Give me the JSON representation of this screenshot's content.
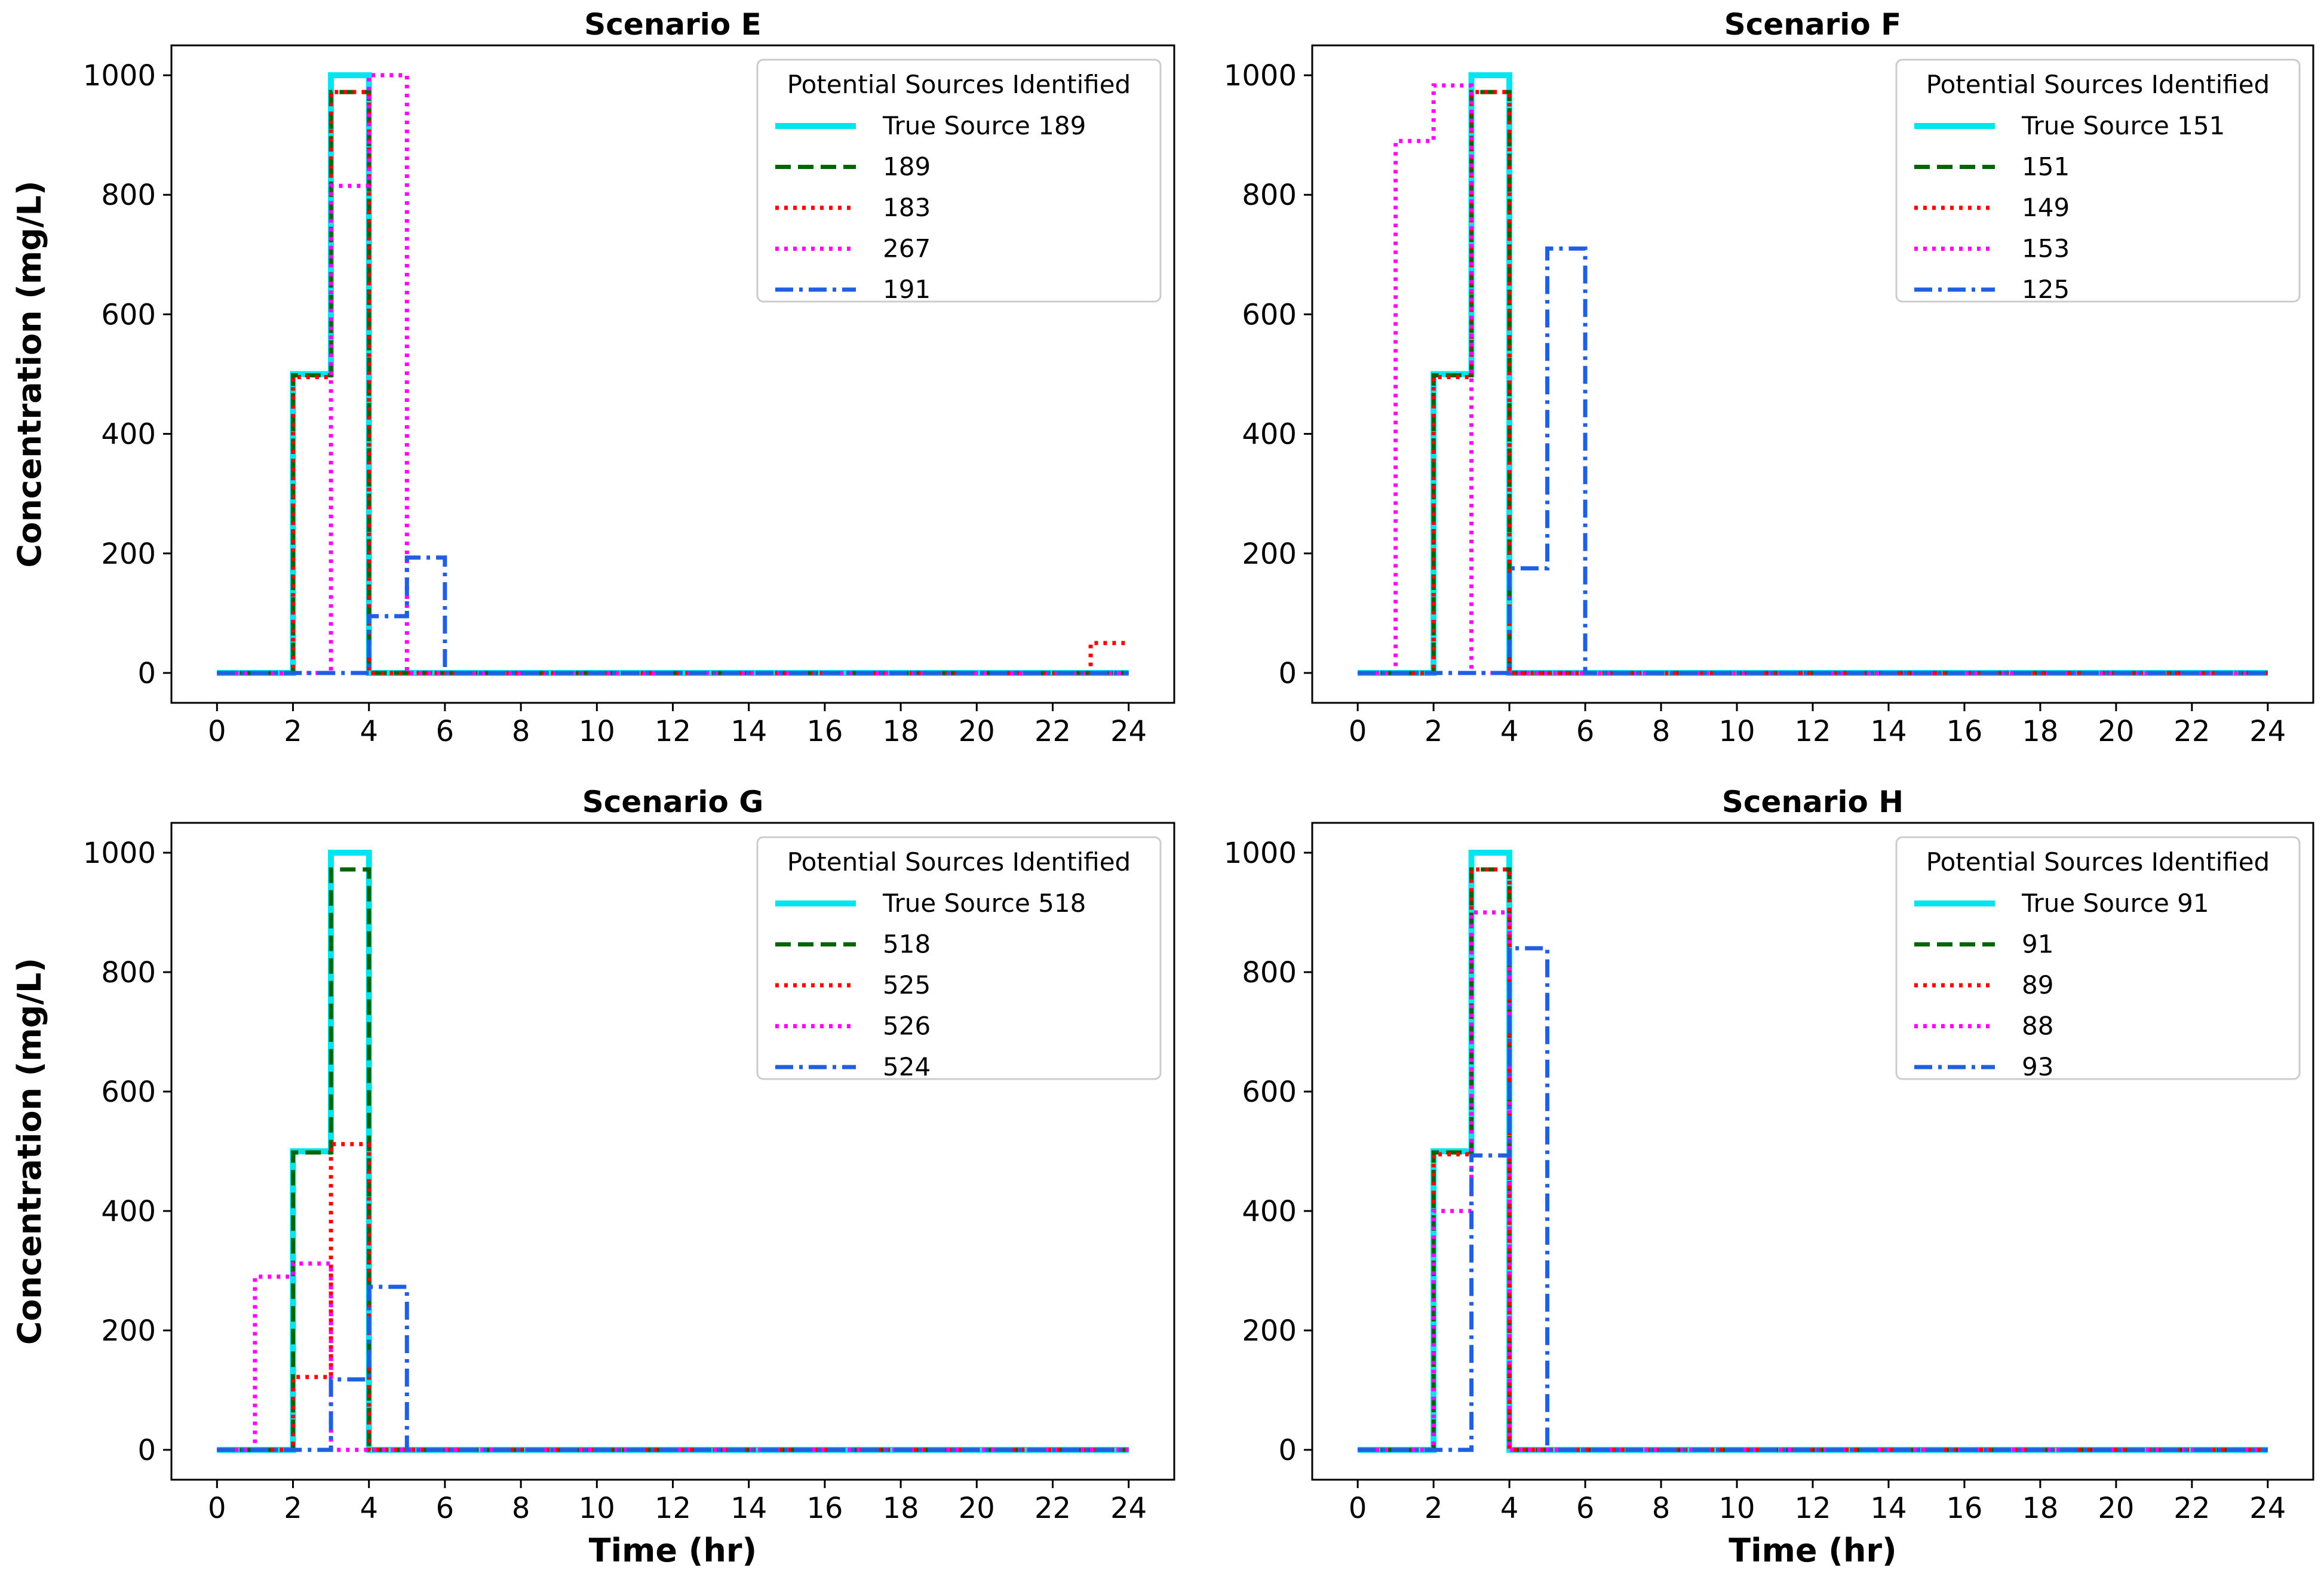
{
  "chart_data": [
    {
      "type": "line",
      "title": "Scenario E",
      "xlabel": "",
      "ylabel": "Concentration (mg/L)",
      "xlim": [
        -1.2,
        25.2
      ],
      "ylim": [
        -50,
        1050
      ],
      "xticks": [
        0,
        2,
        4,
        6,
        8,
        10,
        12,
        14,
        16,
        18,
        20,
        22,
        24
      ],
      "yticks": [
        0,
        200,
        400,
        600,
        800,
        1000
      ],
      "legend": {
        "title": "Potential Sources Identified",
        "placement": "top-right"
      },
      "series": [
        {
          "name": "True Source 189",
          "style": "solid",
          "color": "#00e5ee",
          "x": [
            0,
            2,
            2,
            3,
            3,
            4,
            4,
            24
          ],
          "y": [
            0,
            0,
            500,
            500,
            1000,
            1000,
            0,
            0
          ]
        },
        {
          "name": "189",
          "style": "dashed",
          "color": "#006400",
          "x": [
            0,
            2,
            2,
            3,
            3,
            4,
            4,
            24
          ],
          "y": [
            0,
            0,
            498,
            498,
            972,
            972,
            0,
            0
          ]
        },
        {
          "name": "183",
          "style": "dotted",
          "color": "#ff0000",
          "x": [
            0,
            2,
            2,
            3,
            3,
            4,
            4,
            23,
            23,
            24
          ],
          "y": [
            0,
            0,
            495,
            495,
            972,
            972,
            0,
            0,
            50,
            50
          ]
        },
        {
          "name": "267",
          "style": "dotted",
          "color": "#ff00ff",
          "x": [
            0,
            3,
            3,
            4,
            4,
            5,
            5,
            24
          ],
          "y": [
            0,
            0,
            815,
            815,
            1000,
            1000,
            0,
            0
          ]
        },
        {
          "name": "191",
          "style": "dashdot",
          "color": "#1f5fe0",
          "x": [
            0,
            4,
            4,
            5,
            5,
            6,
            6,
            24
          ],
          "y": [
            0,
            0,
            95,
            95,
            193,
            193,
            0,
            0
          ]
        }
      ]
    },
    {
      "type": "line",
      "title": "Scenario F",
      "xlabel": "",
      "ylabel": "",
      "xlim": [
        -1.2,
        25.2
      ],
      "ylim": [
        -50,
        1050
      ],
      "xticks": [
        0,
        2,
        4,
        6,
        8,
        10,
        12,
        14,
        16,
        18,
        20,
        22,
        24
      ],
      "yticks": [
        0,
        200,
        400,
        600,
        800,
        1000
      ],
      "legend": {
        "title": "Potential Sources Identified",
        "placement": "top-right"
      },
      "series": [
        {
          "name": "True Source 151",
          "style": "solid",
          "color": "#00e5ee",
          "x": [
            0,
            2,
            2,
            3,
            3,
            4,
            4,
            24
          ],
          "y": [
            0,
            0,
            500,
            500,
            1000,
            1000,
            0,
            0
          ]
        },
        {
          "name": "151",
          "style": "dashed",
          "color": "#006400",
          "x": [
            0,
            2,
            2,
            3,
            3,
            4,
            4,
            24
          ],
          "y": [
            0,
            0,
            498,
            498,
            972,
            972,
            0,
            0
          ]
        },
        {
          "name": "149",
          "style": "dotted",
          "color": "#ff0000",
          "x": [
            0,
            2,
            2,
            3,
            3,
            4,
            4,
            24
          ],
          "y": [
            0,
            0,
            495,
            495,
            972,
            972,
            0,
            0
          ]
        },
        {
          "name": "153",
          "style": "dotted",
          "color": "#ff00ff",
          "x": [
            0,
            1,
            1,
            2,
            2,
            3,
            3,
            24
          ],
          "y": [
            0,
            0,
            890,
            890,
            983,
            983,
            0,
            0
          ]
        },
        {
          "name": "125",
          "style": "dashdot",
          "color": "#1f5fe0",
          "x": [
            0,
            4,
            4,
            5,
            5,
            6,
            6,
            24
          ],
          "y": [
            0,
            0,
            175,
            175,
            710,
            710,
            0,
            0
          ]
        }
      ]
    },
    {
      "type": "line",
      "title": "Scenario G",
      "xlabel": "Time (hr)",
      "ylabel": "Concentration (mg/L)",
      "xlim": [
        -1.2,
        25.2
      ],
      "ylim": [
        -50,
        1050
      ],
      "xticks": [
        0,
        2,
        4,
        6,
        8,
        10,
        12,
        14,
        16,
        18,
        20,
        22,
        24
      ],
      "yticks": [
        0,
        200,
        400,
        600,
        800,
        1000
      ],
      "legend": {
        "title": "Potential Sources Identified",
        "placement": "top-right"
      },
      "series": [
        {
          "name": "True Source 518",
          "style": "solid",
          "color": "#00e5ee",
          "x": [
            0,
            2,
            2,
            3,
            3,
            4,
            4,
            24
          ],
          "y": [
            0,
            0,
            500,
            500,
            1000,
            1000,
            0,
            0
          ]
        },
        {
          "name": "518",
          "style": "dashed",
          "color": "#006400",
          "x": [
            0,
            2,
            2,
            3,
            3,
            4,
            4,
            24
          ],
          "y": [
            0,
            0,
            498,
            498,
            972,
            972,
            0,
            0
          ]
        },
        {
          "name": "525",
          "style": "dotted",
          "color": "#ff0000",
          "x": [
            0,
            2,
            2,
            3,
            3,
            4,
            4,
            24
          ],
          "y": [
            0,
            0,
            122,
            122,
            512,
            512,
            0,
            0
          ]
        },
        {
          "name": "526",
          "style": "dotted",
          "color": "#ff00ff",
          "x": [
            0,
            1,
            1,
            2,
            2,
            3,
            3,
            24
          ],
          "y": [
            0,
            0,
            290,
            290,
            312,
            312,
            0,
            0
          ]
        },
        {
          "name": "524",
          "style": "dashdot",
          "color": "#1f5fe0",
          "x": [
            0,
            3,
            3,
            4,
            4,
            5,
            5,
            24
          ],
          "y": [
            0,
            0,
            118,
            118,
            273,
            273,
            0,
            0
          ]
        }
      ]
    },
    {
      "type": "line",
      "title": "Scenario H",
      "xlabel": "Time (hr)",
      "ylabel": "",
      "xlim": [
        -1.2,
        25.2
      ],
      "ylim": [
        -50,
        1050
      ],
      "xticks": [
        0,
        2,
        4,
        6,
        8,
        10,
        12,
        14,
        16,
        18,
        20,
        22,
        24
      ],
      "yticks": [
        0,
        200,
        400,
        600,
        800,
        1000
      ],
      "legend": {
        "title": "Potential Sources Identified",
        "placement": "top-right"
      },
      "series": [
        {
          "name": "True Source 91",
          "style": "solid",
          "color": "#00e5ee",
          "x": [
            0,
            2,
            2,
            3,
            3,
            4,
            4,
            24
          ],
          "y": [
            0,
            0,
            500,
            500,
            1000,
            1000,
            0,
            0
          ]
        },
        {
          "name": "91",
          "style": "dashed",
          "color": "#006400",
          "x": [
            0,
            2,
            2,
            3,
            3,
            4,
            4,
            24
          ],
          "y": [
            0,
            0,
            498,
            498,
            972,
            972,
            0,
            0
          ]
        },
        {
          "name": "89",
          "style": "dotted",
          "color": "#ff0000",
          "x": [
            0,
            2,
            2,
            3,
            3,
            4,
            4,
            24
          ],
          "y": [
            0,
            0,
            495,
            495,
            972,
            972,
            0,
            0
          ]
        },
        {
          "name": "88",
          "style": "dotted",
          "color": "#ff00ff",
          "x": [
            0,
            2,
            2,
            3,
            3,
            4,
            4,
            24
          ],
          "y": [
            0,
            0,
            400,
            400,
            900,
            900,
            0,
            0
          ]
        },
        {
          "name": "93",
          "style": "dashdot",
          "color": "#1f5fe0",
          "x": [
            0,
            3,
            3,
            4,
            4,
            5,
            5,
            24
          ],
          "y": [
            0,
            0,
            493,
            493,
            840,
            840,
            0,
            0
          ]
        }
      ]
    }
  ]
}
